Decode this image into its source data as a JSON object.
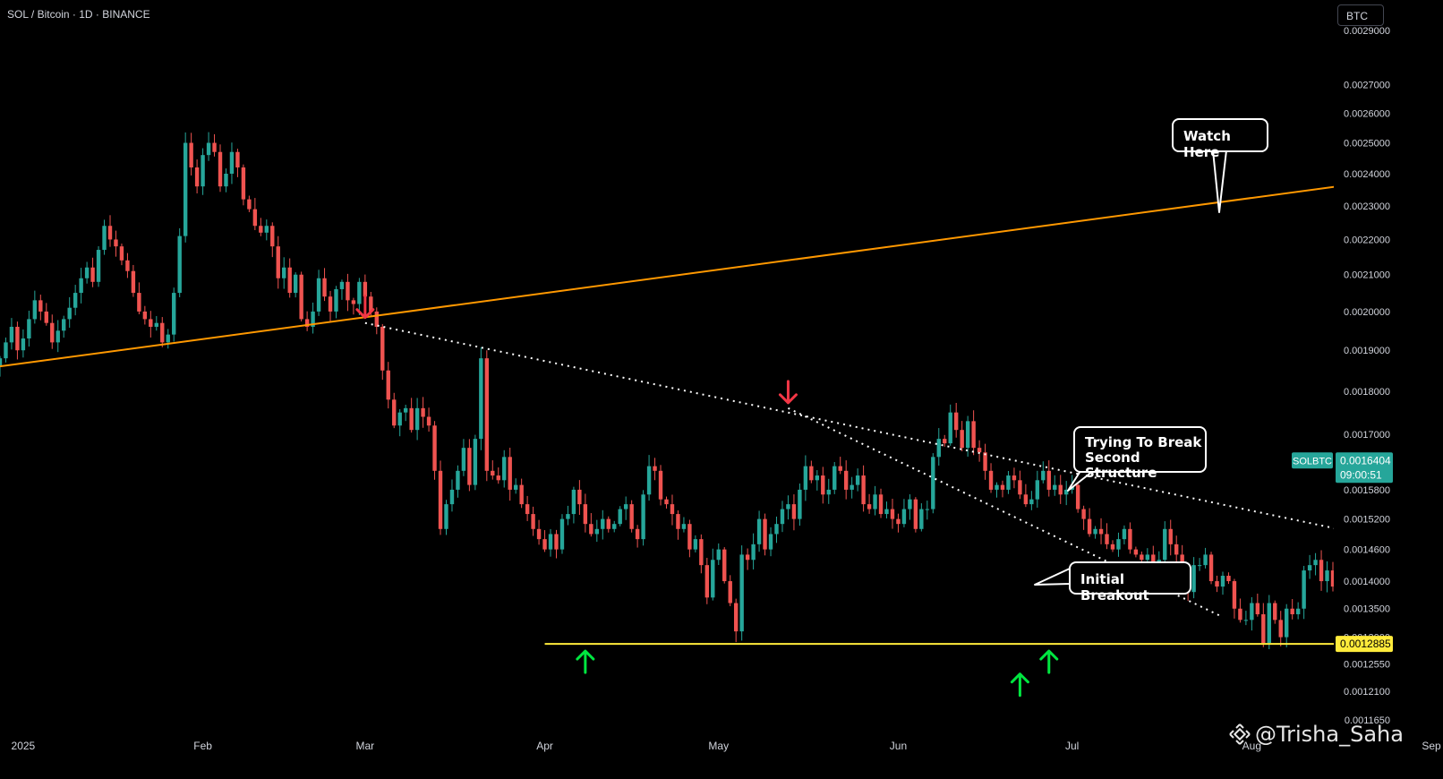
{
  "header": {
    "symbol_title": "SOL / Bitcoin · 1D · BINANCE",
    "currency": "BTC"
  },
  "watermark": {
    "text": "@Trisha_Saha"
  },
  "colors": {
    "background": "#000000",
    "bullish": "#26a69a",
    "bearish": "#ef5350",
    "resistance": "#ff9800",
    "support": "#ffeb3b",
    "trendline": "#ffffff",
    "down_arrow": "#f23645",
    "up_arrow": "#00e640",
    "axis_text": "#d1d4dc"
  },
  "chart_data": {
    "type": "candlestick",
    "symbol": "SOLBTC",
    "x_start": "2024-12-28",
    "x_end": "2025-09-03",
    "y_scale": "log",
    "y_range": [
      0.00111,
      0.00302
    ],
    "y_ticks": [
      "0.0029000",
      "0.0027000",
      "0.0026000",
      "0.0025000",
      "0.0024000",
      "0.0023000",
      "0.0022000",
      "0.0021000",
      "0.0020000",
      "0.0019000",
      "0.0018000",
      "0.0017000",
      "0.0015800",
      "0.0015200",
      "0.0014600",
      "0.0014000",
      "0.0013500",
      "0.0013000",
      "0.0012550",
      "0.0012100",
      "0.0011650"
    ],
    "x_ticks": [
      {
        "date": "2025-01-01",
        "label": "2025"
      },
      {
        "date": "2025-02-01",
        "label": "Feb"
      },
      {
        "date": "2025-03-01",
        "label": "Mar"
      },
      {
        "date": "2025-04-01",
        "label": "Apr"
      },
      {
        "date": "2025-05-01",
        "label": "May"
      },
      {
        "date": "2025-06-01",
        "label": "Jun"
      },
      {
        "date": "2025-07-01",
        "label": "Jul"
      },
      {
        "date": "2025-08-01",
        "label": "Aug"
      },
      {
        "date": "2025-09-01",
        "label": "Sep"
      }
    ],
    "series": [
      {
        "name": "SOLBTC",
        "first_date": "2024-12-28",
        "close": [
          0.00188,
          0.00192,
          0.00196,
          0.0019,
          0.00193,
          0.00198,
          0.00203,
          0.002,
          0.00197,
          0.00192,
          0.00195,
          0.00198,
          0.00201,
          0.00205,
          0.00209,
          0.00212,
          0.00208,
          0.00217,
          0.00224,
          0.0022,
          0.00218,
          0.00214,
          0.00211,
          0.00205,
          0.002,
          0.00198,
          0.00196,
          0.00197,
          0.00192,
          0.00194,
          0.00205,
          0.00221,
          0.0025,
          0.00242,
          0.00236,
          0.00246,
          0.0025,
          0.00247,
          0.00236,
          0.0024,
          0.00247,
          0.00242,
          0.00232,
          0.00229,
          0.00224,
          0.00222,
          0.00224,
          0.00218,
          0.00209,
          0.00212,
          0.00205,
          0.0021,
          0.00198,
          0.00196,
          0.002,
          0.00209,
          0.00204,
          0.002,
          0.00206,
          0.00208,
          0.00203,
          0.00202,
          0.00208,
          0.00204,
          0.002,
          0.00196,
          0.00185,
          0.00178,
          0.00172,
          0.00175,
          0.00176,
          0.00171,
          0.00176,
          0.00174,
          0.00172,
          0.00162,
          0.0015,
          0.00155,
          0.00158,
          0.00162,
          0.00167,
          0.00159,
          0.00169,
          0.00188,
          0.00162,
          0.00161,
          0.0016,
          0.00165,
          0.00158,
          0.00159,
          0.00155,
          0.00153,
          0.0015,
          0.00148,
          0.00146,
          0.00149,
          0.00146,
          0.00152,
          0.00153,
          0.00158,
          0.00155,
          0.00151,
          0.00149,
          0.0015,
          0.00152,
          0.0015,
          0.00151,
          0.00154,
          0.00155,
          0.0015,
          0.00148,
          0.00157,
          0.00163,
          0.00162,
          0.00156,
          0.00155,
          0.00153,
          0.0015,
          0.00151,
          0.00146,
          0.00148,
          0.00143,
          0.00137,
          0.00144,
          0.00146,
          0.0014,
          0.00136,
          0.00131,
          0.00145,
          0.00144,
          0.00147,
          0.00152,
          0.00146,
          0.00149,
          0.00151,
          0.00154,
          0.00155,
          0.00152,
          0.00158,
          0.00163,
          0.0016,
          0.00161,
          0.00157,
          0.00158,
          0.00163,
          0.00162,
          0.00158,
          0.00159,
          0.00161,
          0.00155,
          0.00154,
          0.00157,
          0.00153,
          0.00154,
          0.00152,
          0.00151,
          0.00154,
          0.00156,
          0.0015,
          0.00154,
          0.00154,
          0.00165,
          0.00169,
          0.00168,
          0.00175,
          0.00171,
          0.00167,
          0.00173,
          0.00167,
          0.00166,
          0.00162,
          0.00158,
          0.00159,
          0.00158,
          0.00161,
          0.0016,
          0.00157,
          0.00155,
          0.00156,
          0.0016,
          0.00162,
          0.00158,
          0.00159,
          0.00157,
          0.00158,
          0.00159,
          0.00154,
          0.00152,
          0.00149,
          0.0015,
          0.00149,
          0.00147,
          0.00146,
          0.00148,
          0.0015,
          0.00146,
          0.00145,
          0.00144,
          0.00145,
          0.00142,
          0.00144,
          0.0015,
          0.00147,
          0.00145,
          0.0014,
          0.00138,
          0.00143,
          0.00143,
          0.00145,
          0.0014,
          0.00139,
          0.00141,
          0.0014,
          0.00135,
          0.00133,
          0.00133,
          0.00136,
          0.00134,
          0.00129,
          0.00136,
          0.00133,
          0.0013,
          0.00135,
          0.00134,
          0.00135,
          0.00142,
          0.00143,
          0.00144,
          0.0014,
          0.00142,
          0.00139,
          0.00137,
          0.00136,
          0.00139,
          0.0014,
          0.0014,
          0.00142,
          0.0014,
          0.00143,
          0.00139,
          0.00137,
          0.00136,
          0.00139,
          0.00146,
          0.00149,
          0.00151,
          0.00155,
          0.00153,
          0.00158,
          0.00164
        ]
      }
    ],
    "current_price": {
      "label": "SOLBTC",
      "value": "0.0016404",
      "countdown": "09:00:51"
    },
    "support_level": {
      "value": "0.0012885"
    },
    "lines": [
      {
        "name": "orange-resistance",
        "from": [
          "2024-12-28",
          0.00186
        ],
        "to": [
          "2025-08-30",
          0.002395
        ]
      },
      {
        "name": "main-dotted-trendline",
        "from": [
          "2025-03-01",
          0.00197
        ],
        "to": [
          "2025-08-30",
          0.001466
        ]
      },
      {
        "name": "steep-dotted-trendline",
        "from": [
          "2025-05-13",
          0.00176
        ],
        "to": [
          "2025-07-27",
          0.001335
        ]
      },
      {
        "name": "support-line",
        "from": [
          "2025-04-01",
          0.0012885
        ],
        "to": [
          "2025-08-30",
          0.0012885
        ]
      }
    ],
    "markers": [
      {
        "name": "down-arrow-mar",
        "type": "down",
        "date": "2025-03-01",
        "price": 0.00197
      },
      {
        "name": "down-arrow-may",
        "type": "down",
        "date": "2025-05-13",
        "price": 0.00176
      },
      {
        "name": "up-arrow-apr",
        "type": "up",
        "date": "2025-04-08",
        "price": 0.0012885
      },
      {
        "name": "up-arrow-jun",
        "type": "up",
        "date": "2025-06-22",
        "price": 0.00125
      },
      {
        "name": "up-arrow-jun-b",
        "type": "up",
        "date": "2025-06-27",
        "price": 0.0012885
      }
    ],
    "annotations": [
      {
        "name": "watch-here",
        "lines": [
          "Watch Here"
        ]
      },
      {
        "name": "trying-to-break",
        "lines": [
          "Trying To Break",
          "Second Structure"
        ]
      },
      {
        "name": "initial-breakout",
        "lines": [
          "Initial Breakout"
        ]
      }
    ]
  }
}
